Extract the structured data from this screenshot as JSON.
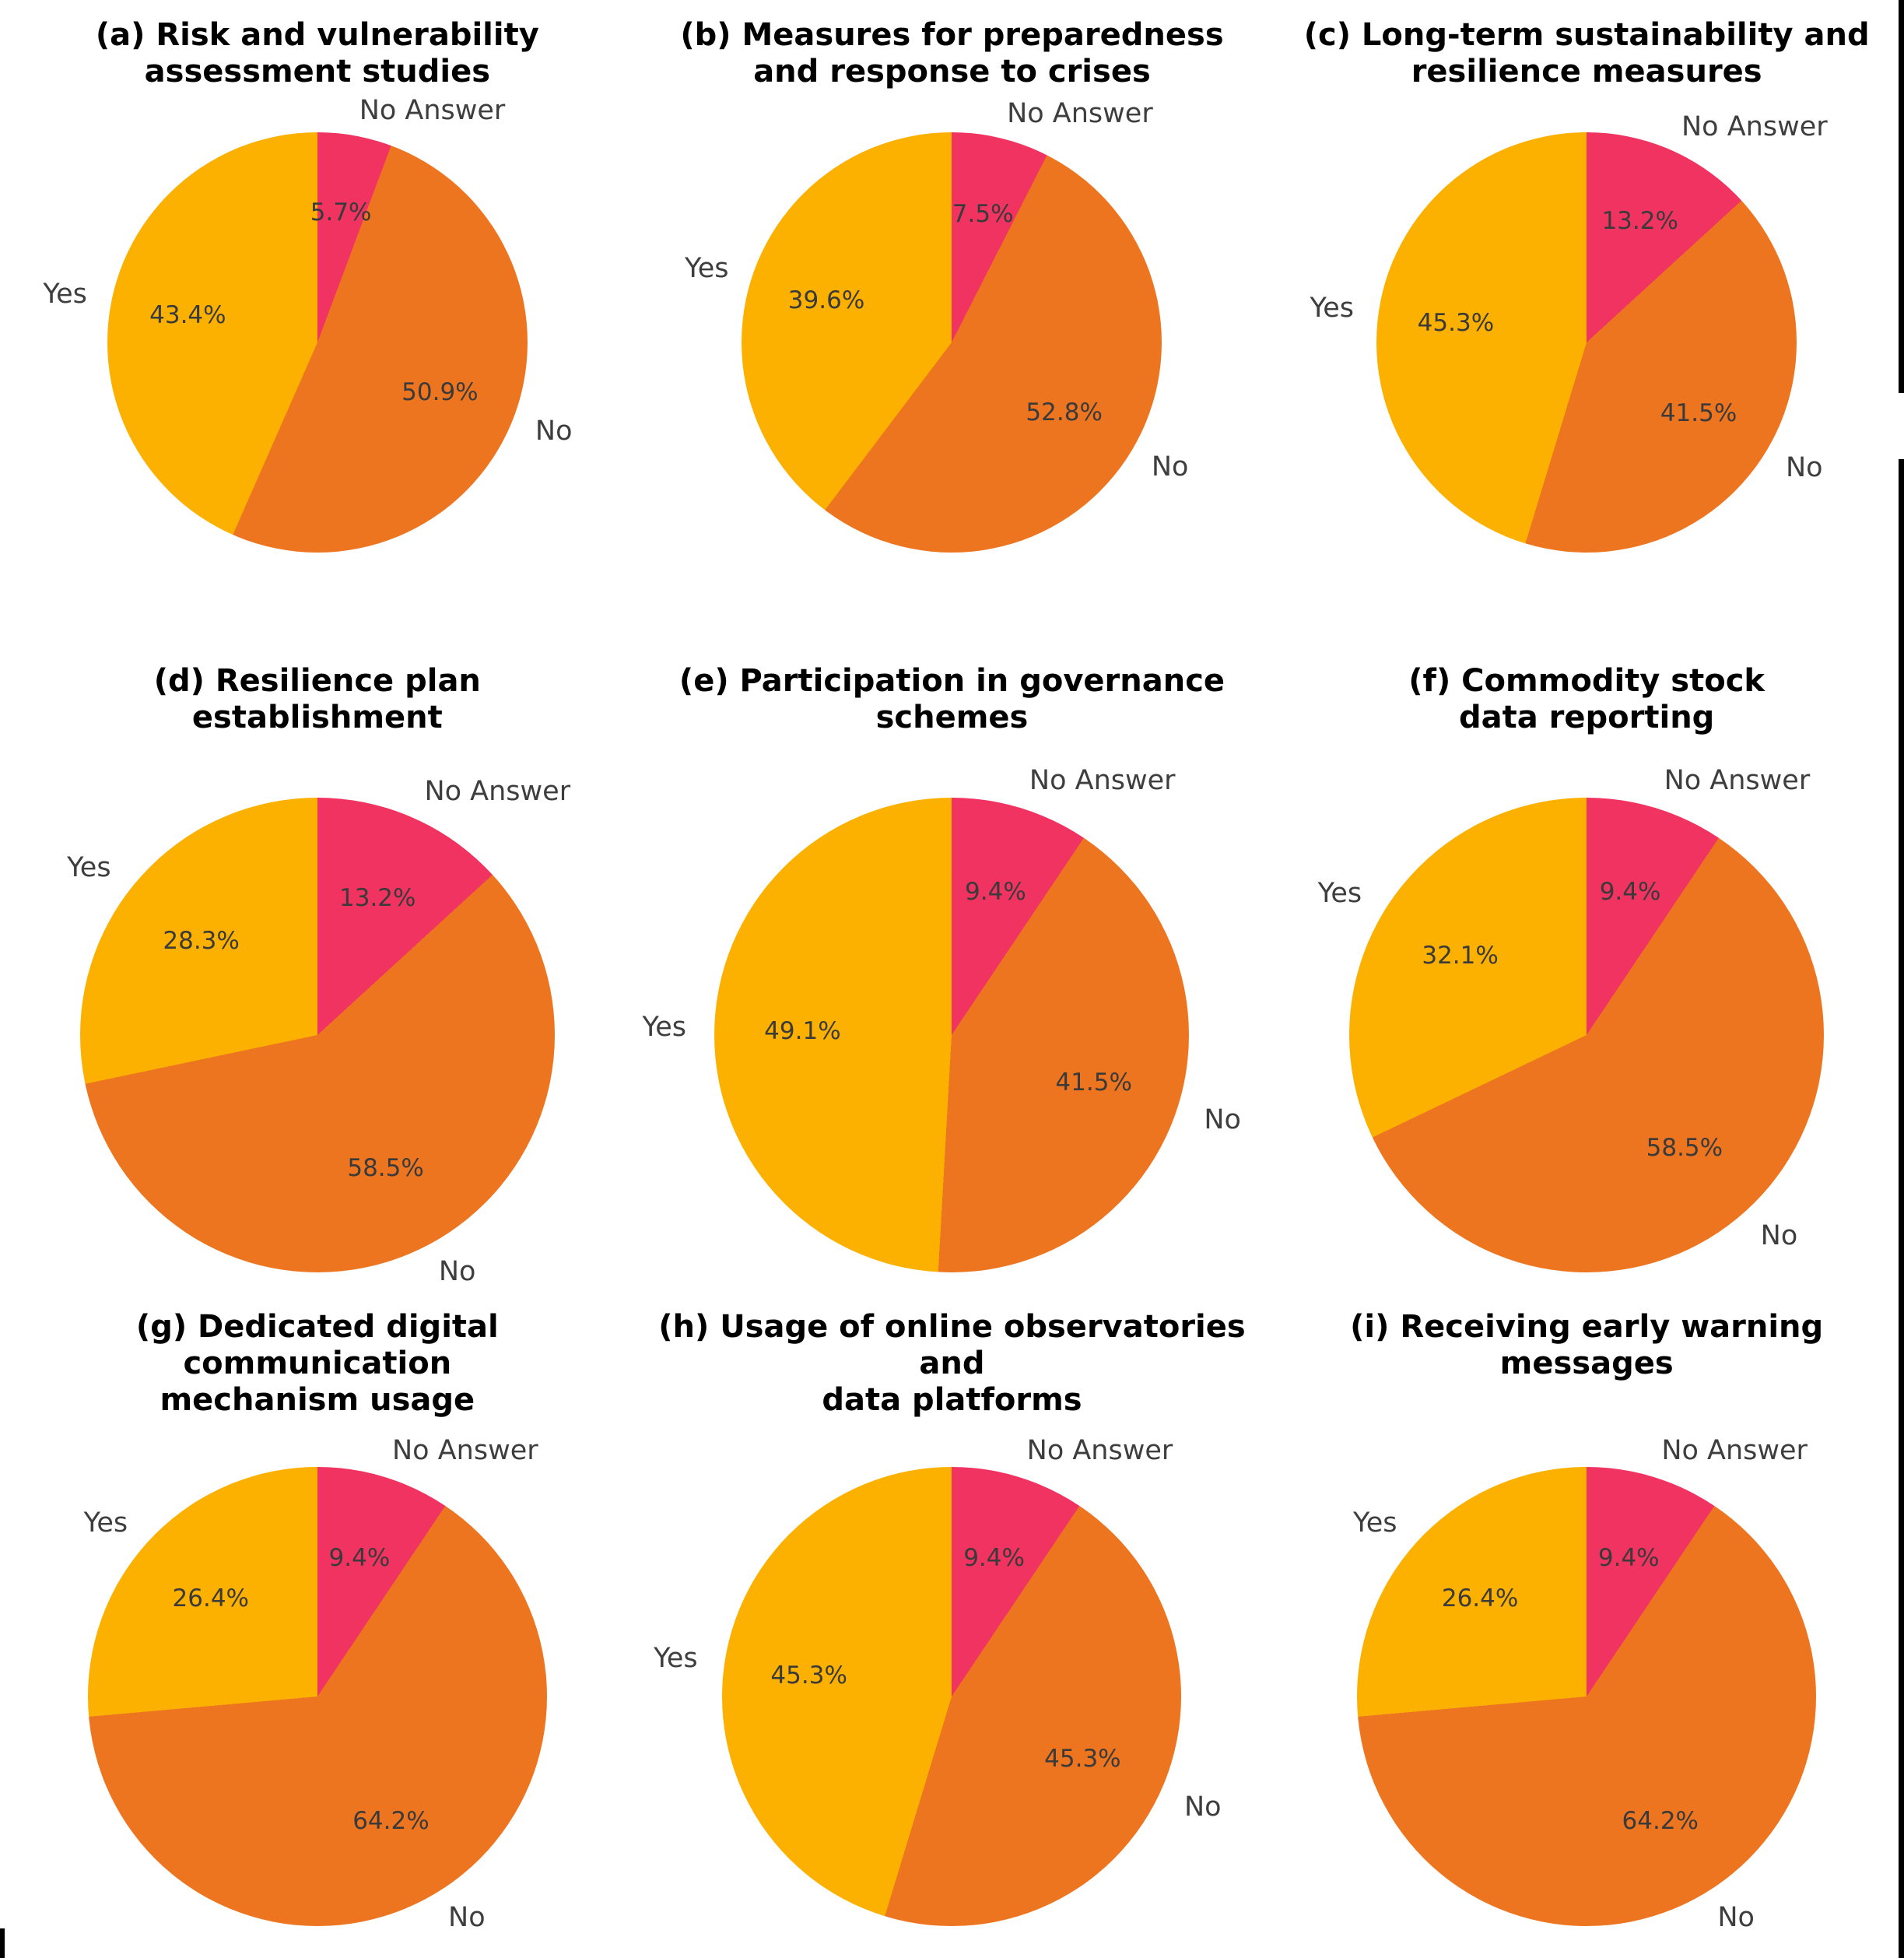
{
  "figure": {
    "background": "#ffffff",
    "grid": "3x3 pie chart panels",
    "palette": {
      "yes": "#FCB100",
      "no": "#EE7520",
      "no_answer": "#F13361"
    },
    "text_colors": {
      "title": "#000000",
      "labels": "#3e3e3e",
      "percents": "#3a3a3a"
    }
  },
  "chart_data": [
    {
      "type": "pie",
      "panel": "a",
      "title": "(a) Risk and vulnerability assessment studies",
      "title_lines": [
        "(a) Risk and vulnerability",
        "assessment studies"
      ],
      "start_angle": "top",
      "direction": "clockwise",
      "legend_position": "outside-labels",
      "slices": [
        {
          "label": "No Answer",
          "value": 5.7,
          "pct": "5.7%",
          "color_key": "no_answer"
        },
        {
          "label": "No",
          "value": 50.9,
          "pct": "50.9%",
          "color_key": "no"
        },
        {
          "label": "Yes",
          "value": 43.4,
          "pct": "43.4%",
          "color_key": "yes"
        }
      ]
    },
    {
      "type": "pie",
      "panel": "b",
      "title": "(b) Measures for preparedness and response to crises",
      "title_lines": [
        "(b) Measures for preparedness",
        "and response to crises"
      ],
      "start_angle": "top",
      "direction": "clockwise",
      "legend_position": "outside-labels",
      "slices": [
        {
          "label": "No Answer",
          "value": 7.5,
          "pct": "7.5%",
          "color_key": "no_answer"
        },
        {
          "label": "No",
          "value": 52.8,
          "pct": "52.8%",
          "color_key": "no"
        },
        {
          "label": "Yes",
          "value": 39.6,
          "pct": "39.6%",
          "color_key": "yes"
        }
      ]
    },
    {
      "type": "pie",
      "panel": "c",
      "title": "(c) Long-term sustainability and resilience measures",
      "title_lines": [
        "(c) Long-term sustainability and",
        "resilience measures"
      ],
      "start_angle": "top",
      "direction": "clockwise",
      "legend_position": "outside-labels",
      "slices": [
        {
          "label": "No Answer",
          "value": 13.2,
          "pct": "13.2%",
          "color_key": "no_answer"
        },
        {
          "label": "No",
          "value": 41.5,
          "pct": "41.5%",
          "color_key": "no"
        },
        {
          "label": "Yes",
          "value": 45.3,
          "pct": "45.3%",
          "color_key": "yes"
        }
      ]
    },
    {
      "type": "pie",
      "panel": "d",
      "title": "(d) Resilience plan establishment",
      "title_lines": [
        "(d) Resilience plan",
        "establishment"
      ],
      "start_angle": "top",
      "direction": "clockwise",
      "legend_position": "outside-labels",
      "slices": [
        {
          "label": "No Answer",
          "value": 13.2,
          "pct": "13.2%",
          "color_key": "no_answer"
        },
        {
          "label": "No",
          "value": 58.5,
          "pct": "58.5%",
          "color_key": "no"
        },
        {
          "label": "Yes",
          "value": 28.3,
          "pct": "28.3%",
          "color_key": "yes"
        }
      ]
    },
    {
      "type": "pie",
      "panel": "e",
      "title": "(e) Participation in governance schemes",
      "title_lines": [
        "(e) Participation in governance",
        "schemes"
      ],
      "start_angle": "top",
      "direction": "clockwise",
      "legend_position": "outside-labels",
      "slices": [
        {
          "label": "No Answer",
          "value": 9.4,
          "pct": "9.4%",
          "color_key": "no_answer"
        },
        {
          "label": "No",
          "value": 41.5,
          "pct": "41.5%",
          "color_key": "no"
        },
        {
          "label": "Yes",
          "value": 49.1,
          "pct": "49.1%",
          "color_key": "yes"
        }
      ]
    },
    {
      "type": "pie",
      "panel": "f",
      "title": "(f) Commodity stock data reporting",
      "title_lines": [
        "(f) Commodity stock",
        "data reporting"
      ],
      "start_angle": "top",
      "direction": "clockwise",
      "legend_position": "outside-labels",
      "slices": [
        {
          "label": "No Answer",
          "value": 9.4,
          "pct": "9.4%",
          "color_key": "no_answer"
        },
        {
          "label": "No",
          "value": 58.5,
          "pct": "58.5%",
          "color_key": "no"
        },
        {
          "label": "Yes",
          "value": 32.1,
          "pct": "32.1%",
          "color_key": "yes"
        }
      ]
    },
    {
      "type": "pie",
      "panel": "g",
      "title": "(g) Dedicated digital communication mechanism usage",
      "title_lines": [
        "(g) Dedicated digital communication",
        "mechanism usage"
      ],
      "start_angle": "top",
      "direction": "clockwise",
      "legend_position": "outside-labels",
      "slices": [
        {
          "label": "No Answer",
          "value": 9.4,
          "pct": "9.4%",
          "color_key": "no_answer"
        },
        {
          "label": "No",
          "value": 64.2,
          "pct": "64.2%",
          "color_key": "no"
        },
        {
          "label": "Yes",
          "value": 26.4,
          "pct": "26.4%",
          "color_key": "yes"
        }
      ]
    },
    {
      "type": "pie",
      "panel": "h",
      "title": "(h) Usage of online observatories and data platforms",
      "title_lines": [
        "(h) Usage of online observatories and",
        "data platforms"
      ],
      "start_angle": "top",
      "direction": "clockwise",
      "legend_position": "outside-labels",
      "slices": [
        {
          "label": "No Answer",
          "value": 9.4,
          "pct": "9.4%",
          "color_key": "no_answer"
        },
        {
          "label": "No",
          "value": 45.3,
          "pct": "45.3%",
          "color_key": "no"
        },
        {
          "label": "Yes",
          "value": 45.3,
          "pct": "45.3%",
          "color_key": "yes"
        }
      ]
    },
    {
      "type": "pie",
      "panel": "i",
      "title": "(i) Receiving early warning messages",
      "title_lines": [
        "(i) Receiving early warning",
        "messages"
      ],
      "start_angle": "top",
      "direction": "clockwise",
      "legend_position": "outside-labels",
      "slices": [
        {
          "label": "No Answer",
          "value": 9.4,
          "pct": "9.4%",
          "color_key": "no_answer"
        },
        {
          "label": "No",
          "value": 64.2,
          "pct": "64.2%",
          "color_key": "no"
        },
        {
          "label": "Yes",
          "value": 26.4,
          "pct": "26.4%",
          "color_key": "yes"
        }
      ]
    }
  ]
}
